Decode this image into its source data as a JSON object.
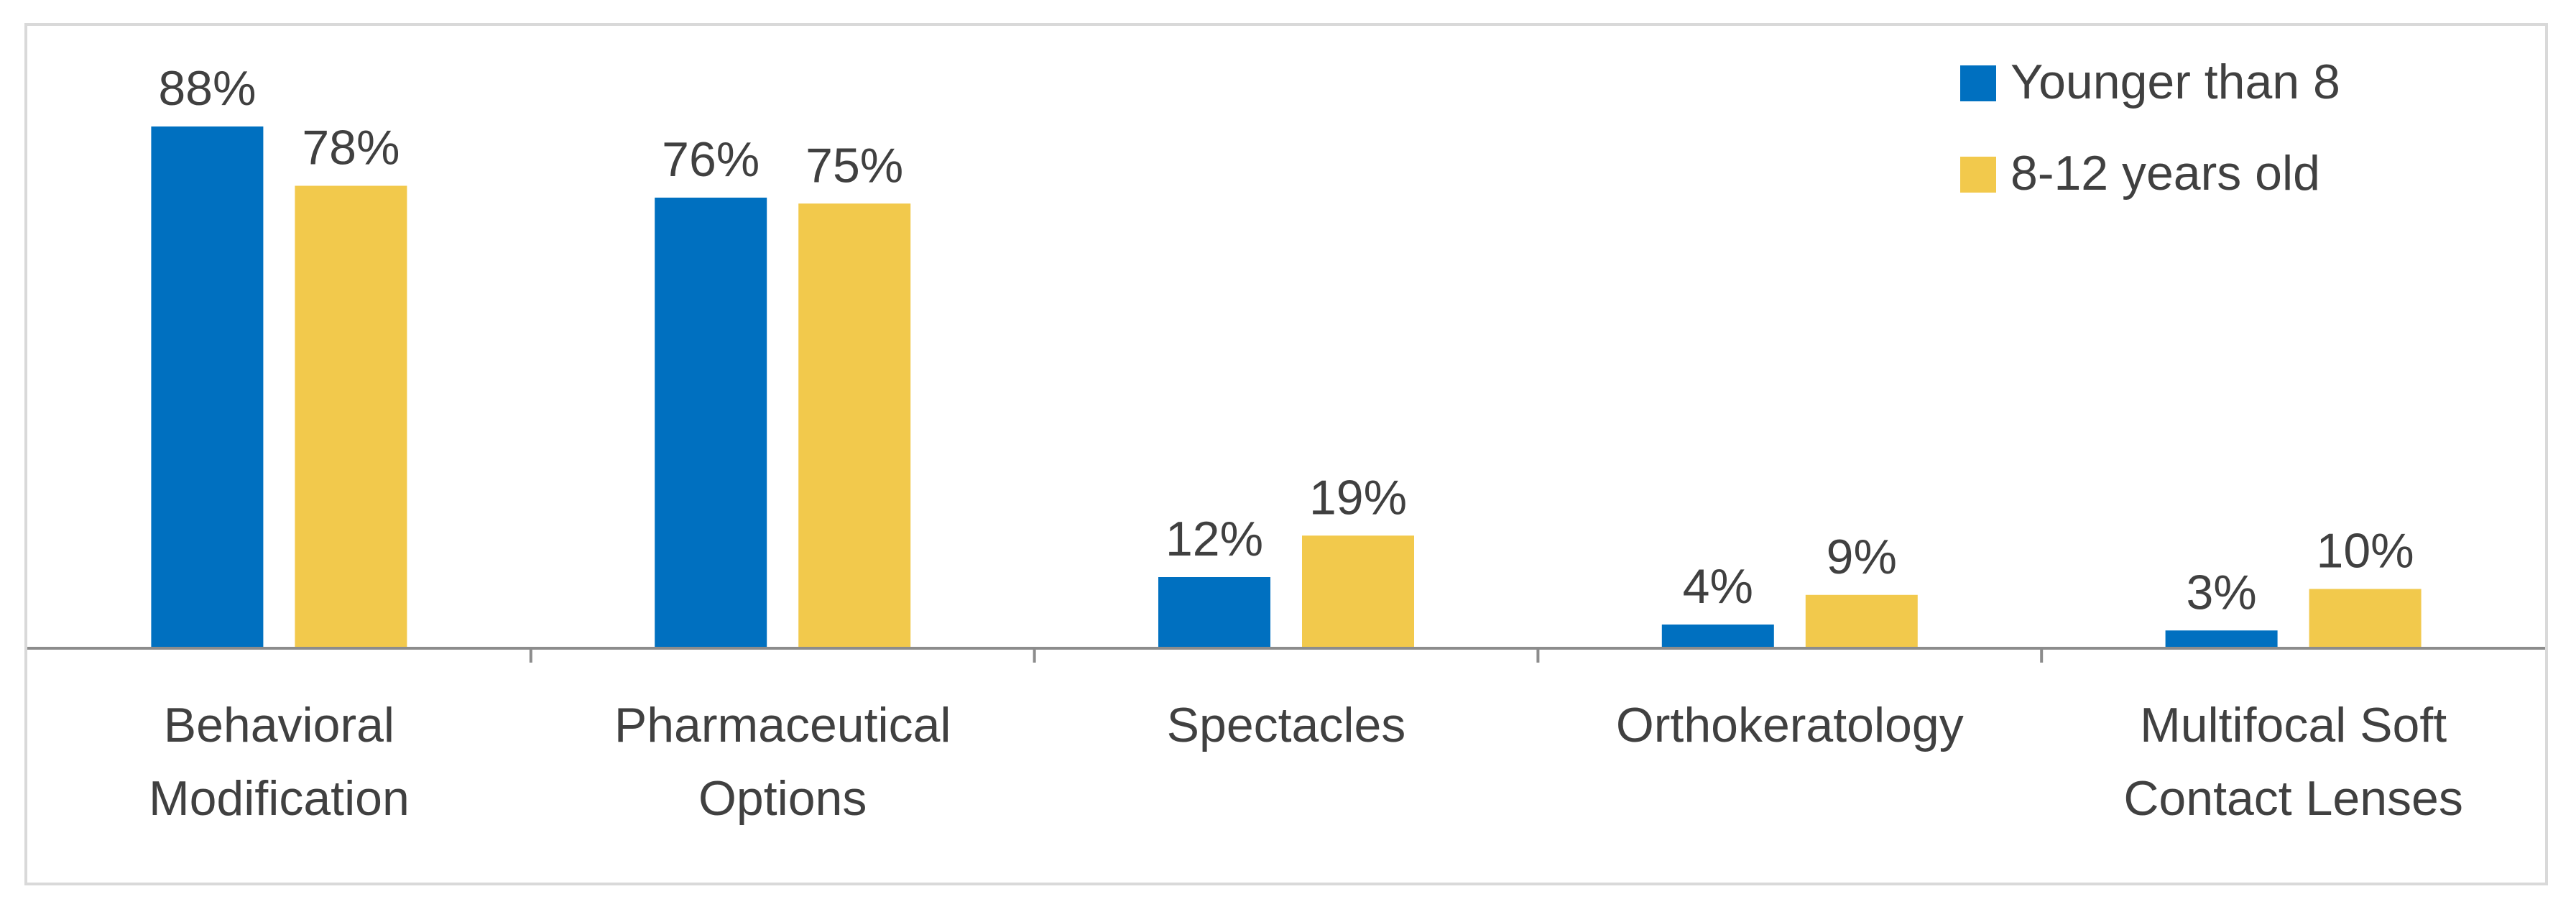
{
  "chart_data": {
    "type": "bar",
    "title": "",
    "xlabel": "",
    "ylabel": "",
    "ylim": [
      0,
      100
    ],
    "grid": false,
    "legend_position": "top-right",
    "categories": [
      [
        "Behavioral",
        "Modification"
      ],
      [
        "Pharmaceutical",
        "Options"
      ],
      [
        "Spectacles"
      ],
      [
        "Orthokeratology"
      ],
      [
        "Multifocal Soft",
        "Contact Lenses"
      ]
    ],
    "series": [
      {
        "name": "Younger than 8",
        "color": "#0070c0",
        "values": [
          88,
          76,
          12,
          4,
          3
        ],
        "labels": [
          "88%",
          "76%",
          "12%",
          "4%",
          "3%"
        ]
      },
      {
        "name": "8-12 years old",
        "color": "#f2c94c",
        "values": [
          78,
          75,
          19,
          9,
          10
        ],
        "labels": [
          "78%",
          "75%",
          "19%",
          "9%",
          "10%"
        ]
      }
    ]
  }
}
